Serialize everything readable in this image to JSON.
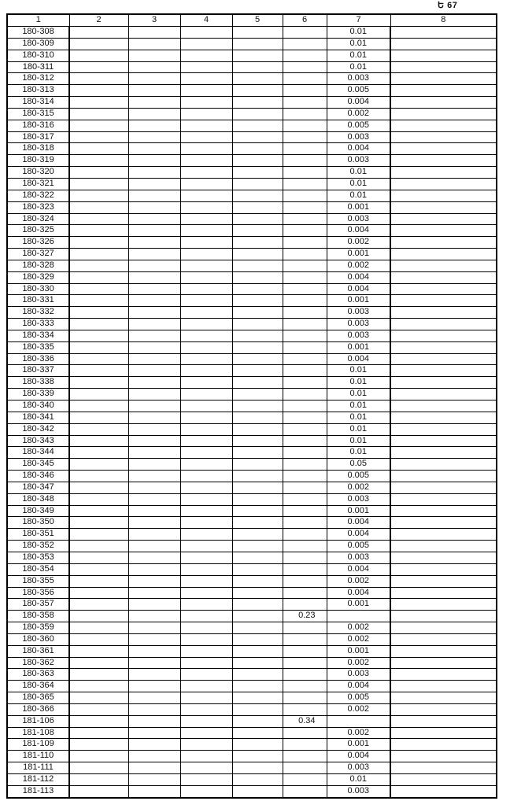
{
  "page_number": "Ե 67",
  "headers": [
    "1",
    "2",
    "3",
    "4",
    "5",
    "6",
    "7",
    "8"
  ],
  "rows": [
    [
      "180-308",
      "",
      "0.01"
    ],
    [
      "180-309",
      "",
      "0.01"
    ],
    [
      "180-310",
      "",
      "0.01"
    ],
    [
      "180-311",
      "",
      "0.01"
    ],
    [
      "180-312",
      "",
      "0.003"
    ],
    [
      "180-313",
      "",
      "0.005"
    ],
    [
      "180-314",
      "",
      "0.004"
    ],
    [
      "180-315",
      "",
      "0.002"
    ],
    [
      "180-316",
      "",
      "0.005"
    ],
    [
      "180-317",
      "",
      "0.003"
    ],
    [
      "180-318",
      "",
      "0.004"
    ],
    [
      "180-319",
      "",
      "0.003"
    ],
    [
      "180-320",
      "",
      "0.01"
    ],
    [
      "180-321",
      "",
      "0.01"
    ],
    [
      "180-322",
      "",
      "0.01"
    ],
    [
      "180-323",
      "",
      "0.001"
    ],
    [
      "180-324",
      "",
      "0.003"
    ],
    [
      "180-325",
      "",
      "0.004"
    ],
    [
      "180-326",
      "",
      "0.002"
    ],
    [
      "180-327",
      "",
      "0.001"
    ],
    [
      "180-328",
      "",
      "0.002"
    ],
    [
      "180-329",
      "",
      "0.004"
    ],
    [
      "180-330",
      "",
      "0.004"
    ],
    [
      "180-331",
      "",
      "0.001"
    ],
    [
      "180-332",
      "",
      "0.003"
    ],
    [
      "180-333",
      "",
      "0.003"
    ],
    [
      "180-334",
      "",
      "0.003"
    ],
    [
      "180-335",
      "",
      "0.001"
    ],
    [
      "180-336",
      "",
      "0.004"
    ],
    [
      "180-337",
      "",
      "0.01"
    ],
    [
      "180-338",
      "",
      "0.01"
    ],
    [
      "180-339",
      "",
      "0.01"
    ],
    [
      "180-340",
      "",
      "0.01"
    ],
    [
      "180-341",
      "",
      "0.01"
    ],
    [
      "180-342",
      "",
      "0.01"
    ],
    [
      "180-343",
      "",
      "0.01"
    ],
    [
      "180-344",
      "",
      "0.01"
    ],
    [
      "180-345",
      "",
      "0.05"
    ],
    [
      "180-346",
      "",
      "0.005"
    ],
    [
      "180-347",
      "",
      "0.002"
    ],
    [
      "180-348",
      "",
      "0.003"
    ],
    [
      "180-349",
      "",
      "0.001"
    ],
    [
      "180-350",
      "",
      "0.004"
    ],
    [
      "180-351",
      "",
      "0.004"
    ],
    [
      "180-352",
      "",
      "0.005"
    ],
    [
      "180-353",
      "",
      "0.003"
    ],
    [
      "180-354",
      "",
      "0.004"
    ],
    [
      "180-355",
      "",
      "0.002"
    ],
    [
      "180-356",
      "",
      "0.004"
    ],
    [
      "180-357",
      "",
      "0.001"
    ],
    [
      "180-358",
      "0.23",
      ""
    ],
    [
      "180-359",
      "",
      "0.002"
    ],
    [
      "180-360",
      "",
      "0.002"
    ],
    [
      "180-361",
      "",
      "0.001"
    ],
    [
      "180-362",
      "",
      "0.002"
    ],
    [
      "180-363",
      "",
      "0.003"
    ],
    [
      "180-364",
      "",
      "0.004"
    ],
    [
      "180-365",
      "",
      "0.005"
    ],
    [
      "180-366",
      "",
      "0.002"
    ],
    [
      "181-106",
      "0.34",
      ""
    ],
    [
      "181-108",
      "",
      "0.002"
    ],
    [
      "181-109",
      "",
      "0.001"
    ],
    [
      "181-110",
      "",
      "0.004"
    ],
    [
      "181-111",
      "",
      "0.003"
    ],
    [
      "181-112",
      "",
      "0.01"
    ],
    [
      "181-113",
      "",
      "0.003"
    ]
  ]
}
